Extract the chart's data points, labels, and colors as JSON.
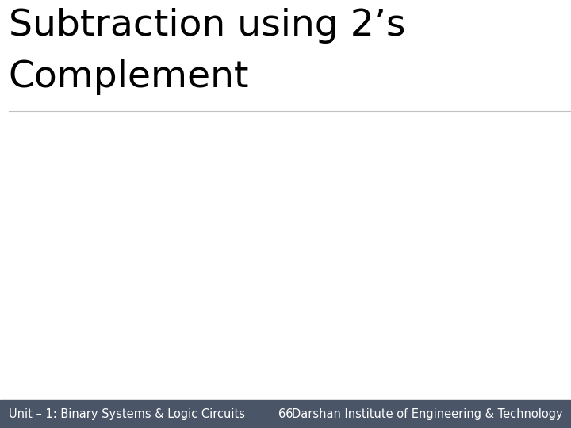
{
  "title_line1": "Subtraction using 2’s",
  "title_line2": "Complement",
  "title_fontsize": 34,
  "title_color": "#000000",
  "footer_bg_color": "#4a5568",
  "footer_text_color": "#ffffff",
  "footer_left": "Unit – 1: Binary Systems & Logic Circuits",
  "footer_center": "66",
  "footer_right": "Darshan Institute of Engineering & Technology",
  "footer_fontsize": 10.5,
  "bg_color": "#ffffff",
  "fig_width": 7.2,
  "fig_height": 5.4,
  "dpi": 100
}
